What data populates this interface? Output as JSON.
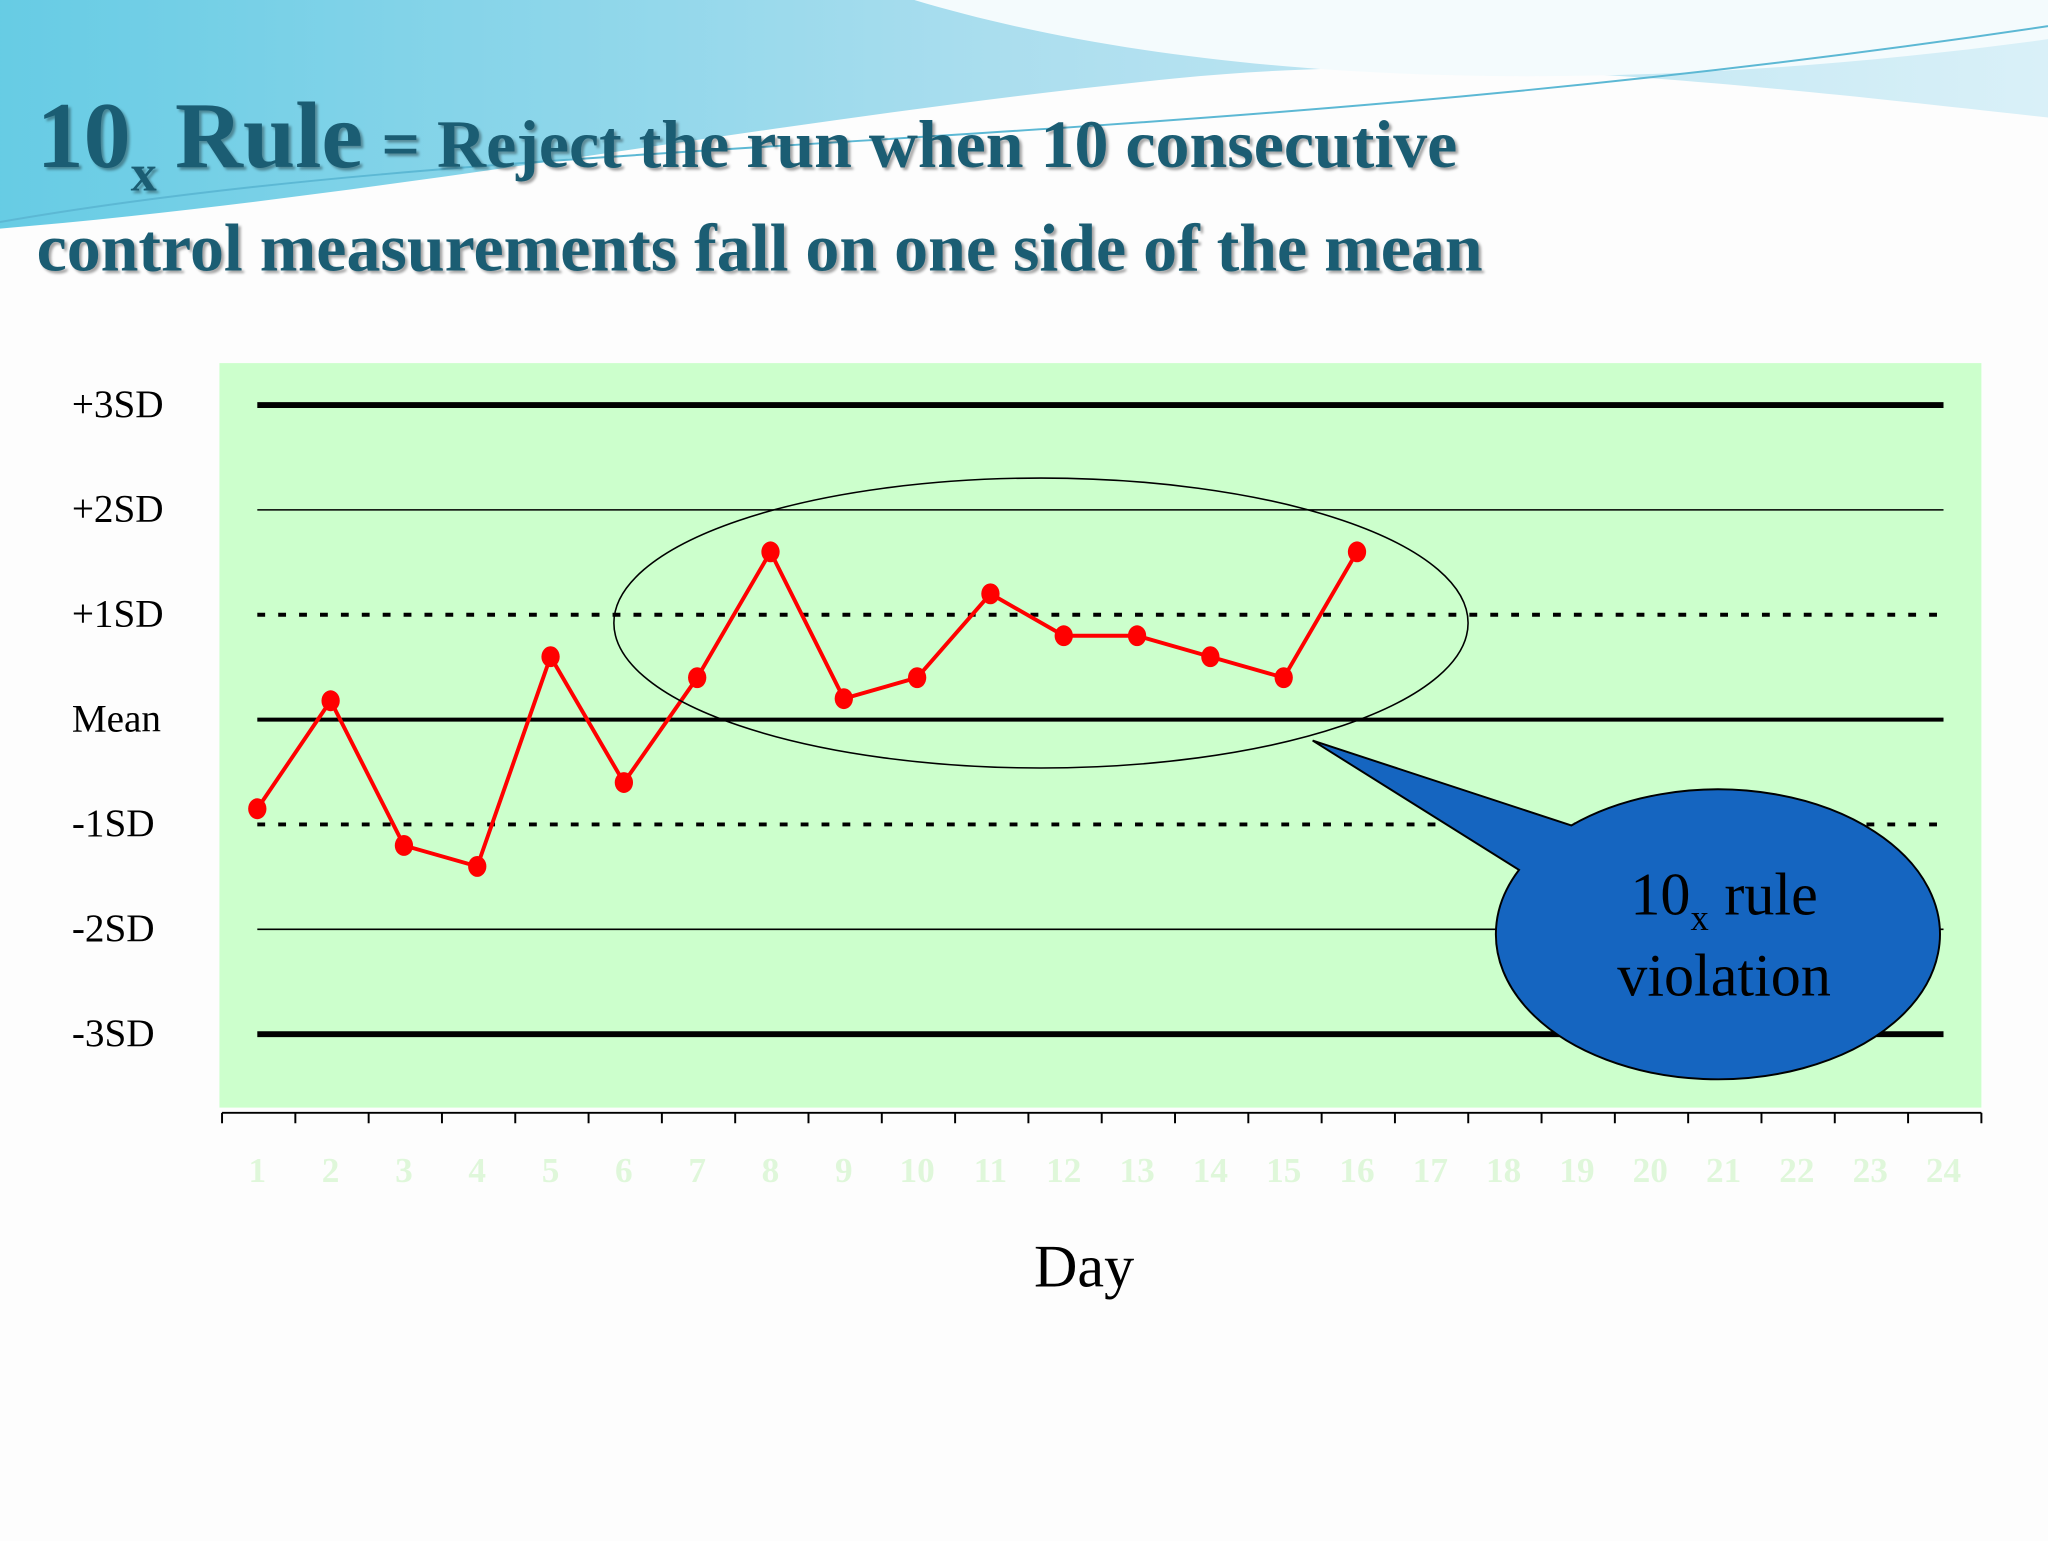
{
  "title": {
    "number": "10",
    "subscript": "x",
    "word": "Rule",
    "lines": [
      "= Reject the run when 10 consecutive",
      "control measurements fall on one side of the mean"
    ]
  },
  "chart_data": {
    "type": "line",
    "categories": [
      "1",
      "2",
      "3",
      "4",
      "5",
      "6",
      "7",
      "8",
      "9",
      "10",
      "11",
      "12",
      "13",
      "14",
      "15",
      "16",
      "17",
      "18",
      "19",
      "20",
      "21",
      "22",
      "23",
      "24"
    ],
    "series": [
      {
        "color": "#ff0000",
        "values": [
          -0.85,
          0.18,
          -1.2,
          -1.4,
          0.6,
          -0.6,
          0.4,
          1.6,
          0.2,
          0.4,
          1.2,
          0.8,
          0.8,
          0.6,
          0.4,
          1.6,
          null,
          null,
          null,
          null,
          null,
          null,
          null,
          null
        ]
      }
    ],
    "ylim": [
      -3.7,
      3.4
    ],
    "yticks": [
      {
        "value": 3,
        "label": "+3SD"
      },
      {
        "value": 2,
        "label": "+2SD"
      },
      {
        "value": 1,
        "label": "+1SD"
      },
      {
        "value": 0,
        "label": "Mean"
      },
      {
        "value": -1,
        "label": "-1SD"
      },
      {
        "value": -2,
        "label": "-2SD"
      },
      {
        "value": -3,
        "label": "-3SD"
      }
    ],
    "x_label": "Day",
    "grid": true,
    "background": "#ccffcc",
    "annotation": {
      "number": "10",
      "subscript": "x",
      "word": "rule",
      "line2": "violation"
    }
  }
}
